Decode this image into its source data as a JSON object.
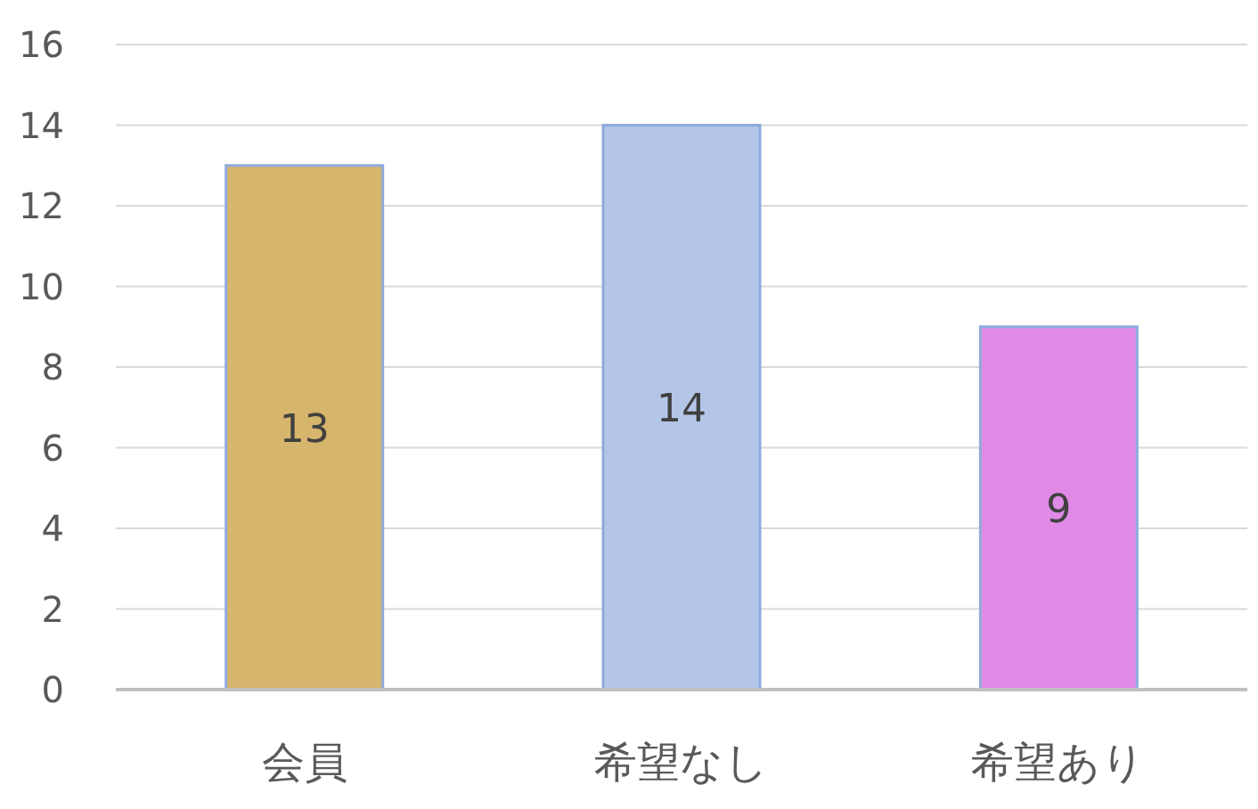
{
  "chart_data": {
    "type": "bar",
    "categories": [
      "会員",
      "希望なし",
      "希望あり"
    ],
    "values": [
      13,
      14,
      9
    ],
    "colors": [
      "#d6b56c",
      "#b4c6e8",
      "#e08ae6"
    ],
    "ylim": [
      0,
      16
    ],
    "yticks": [
      0,
      2,
      4,
      6,
      8,
      10,
      12,
      14,
      16
    ],
    "grid": "y",
    "data_labels": true
  }
}
